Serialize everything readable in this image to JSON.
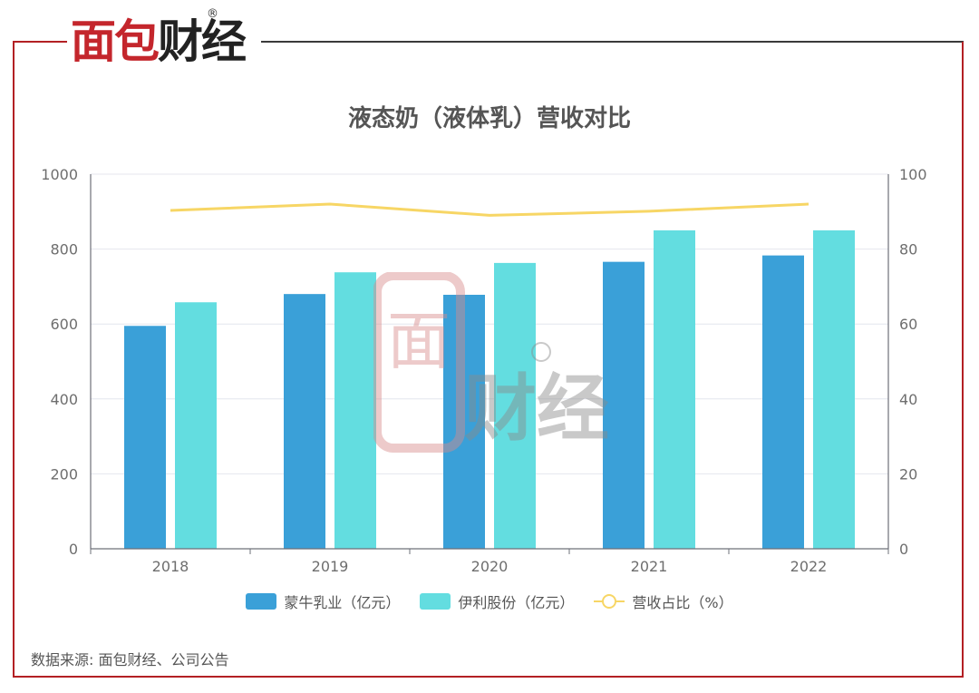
{
  "brand": {
    "name_red": "面包",
    "name_dark": "财经",
    "reg_mark": "®"
  },
  "source_text": "数据来源: 面包财经、公司公告",
  "colors": {
    "mengniu": "#3aa0d8",
    "yili": "#63dde0",
    "ratio": "#f7d665",
    "frame": "#b32024"
  },
  "chart_data": {
    "type": "bar",
    "title": "液态奶（液体乳）营收对比",
    "categories": [
      "2018",
      "2019",
      "2020",
      "2021",
      "2022"
    ],
    "series": [
      {
        "name": "蒙牛乳业（亿元）",
        "type": "bar",
        "axis": "left",
        "values": [
          595,
          680,
          678,
          766,
          783
        ]
      },
      {
        "name": "伊利股份（亿元）",
        "type": "bar",
        "axis": "left",
        "values": [
          658,
          738,
          763,
          850,
          850
        ]
      },
      {
        "name": "营收占比（%）",
        "type": "line",
        "axis": "right",
        "values": [
          90.3,
          92.0,
          89.0,
          90.1,
          92.0
        ]
      }
    ],
    "y_left": {
      "min": 0,
      "max": 1000,
      "ticks": [
        "0",
        "200",
        "400",
        "600",
        "800",
        "1000"
      ]
    },
    "y_right": {
      "min": 0,
      "max": 100,
      "ticks": [
        "0",
        "20",
        "40",
        "60",
        "80",
        "100"
      ]
    },
    "grid": true,
    "legend": "bottom"
  }
}
